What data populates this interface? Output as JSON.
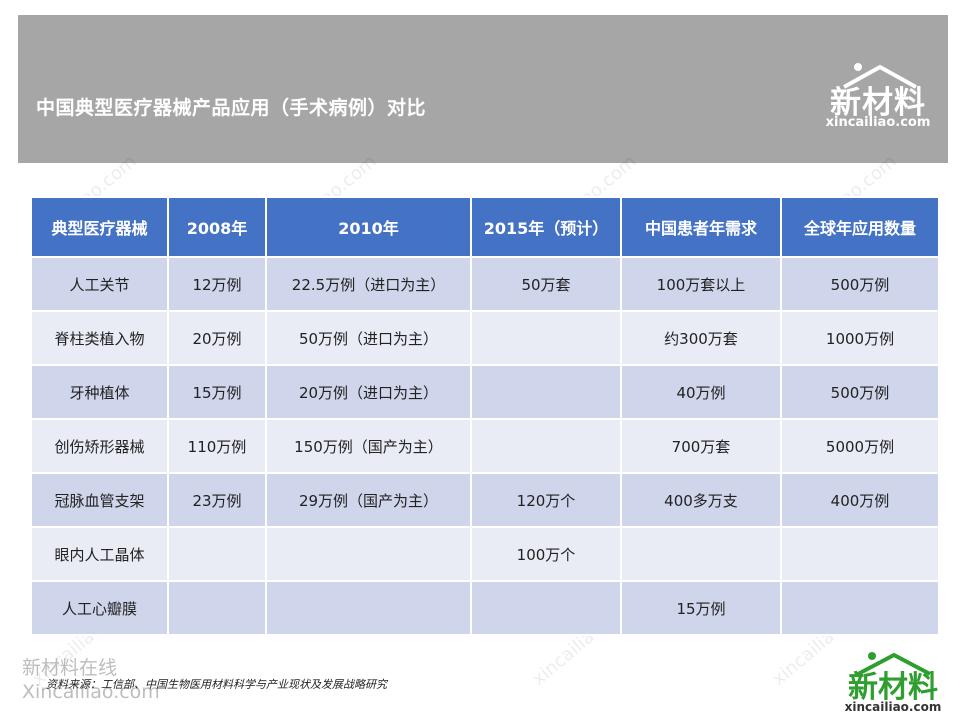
{
  "title": "中国典型医疗器械产品应用（手术病例）对比",
  "logo": {
    "cn": "新材料",
    "en": "xincailiao.com"
  },
  "watermark": {
    "cn": "新材料在线",
    "en": "Xincailiao.com"
  },
  "table": {
    "headers": [
      "典型医疗器械",
      "2008年",
      "2010年",
      "2015年（预计）",
      "中国患者年需求",
      "全球年应用数量"
    ],
    "rows": [
      [
        "人工关节",
        "12万例",
        "22.5万例（进口为主）",
        "50万套",
        "100万套以上",
        "500万例"
      ],
      [
        "脊柱类植入物",
        "20万例",
        "50万例（进口为主）",
        "",
        "约300万套",
        "1000万例"
      ],
      [
        "牙种植体",
        "15万例",
        "20万例（进口为主）",
        "",
        "40万例",
        "500万例"
      ],
      [
        "创伤矫形器械",
        "110万例",
        "150万例（国产为主）",
        "",
        "700万套",
        "5000万例"
      ],
      [
        "冠脉血管支架",
        "23万例",
        "29万例（国产为主）",
        "120万个",
        "400多万支",
        "400万例"
      ],
      [
        "眼内人工晶体",
        "",
        "",
        "100万个",
        "",
        ""
      ],
      [
        "人工心瓣膜",
        "",
        "",
        "",
        "15万例",
        ""
      ]
    ]
  },
  "source": "资料来源：工信部、中国生物医用材料科学与产业现状及发展战略研究",
  "colors": {
    "header_band": "#a6a6a6",
    "table_header": "#4472c4",
    "row_dark": "#cfd5ea",
    "row_light": "#e9ebf5",
    "logo_green": "#2e9e2e"
  }
}
